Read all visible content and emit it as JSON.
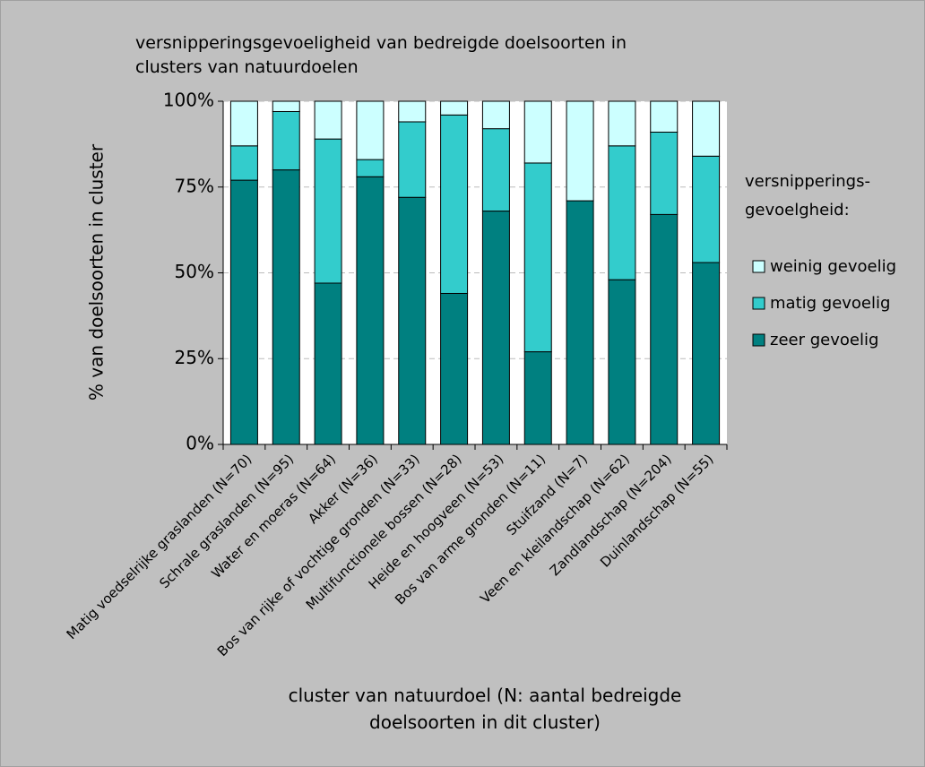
{
  "chart_data": {
    "type": "stacked_bar",
    "title": "versnipperingsgevoeligheid van bedreigde doelsoorten in clusters van natuurdoelen",
    "y_label": "% van doelsoorten in cluster",
    "x_label": "cluster van natuurdoel (N: aantal bedreigde doelsoorten in dit cluster)",
    "legend_title": "versnipperings-gevoelgheid:",
    "categories": [
      "Matig voedselrijke graslanden (N=70)",
      "Schrale graslanden (N=95)",
      "Water en moeras (N=64)",
      "Akker (N=36)",
      "Bos van rijke of vochtige gronden (N=33)",
      "Multifunctionele bossen (N=28)",
      "Heide en hoogveen (N=53)",
      "Bos van arme gronden (N=11)",
      "Stuifzand (N=7)",
      "Veen en kleilandschap (N=62)",
      "Zandlandschap (N=204)",
      "Duinlandschap (N=55)"
    ],
    "series": [
      {
        "name": "zeer gevoelig",
        "color": "#008080",
        "values": [
          77,
          80,
          47,
          78,
          72,
          44,
          68,
          27,
          71,
          48,
          67,
          53
        ]
      },
      {
        "name": "matig gevoelig",
        "color": "#33cccc",
        "values": [
          10,
          17,
          42,
          5,
          22,
          52,
          24,
          55,
          0,
          39,
          24,
          31
        ]
      },
      {
        "name": "weinig gevoelig",
        "color": "#ccffff",
        "values": [
          13,
          3,
          11,
          17,
          6,
          4,
          8,
          18,
          29,
          13,
          9,
          16
        ]
      }
    ],
    "ylim": [
      0,
      100
    ],
    "yticks": [
      {
        "value": 0,
        "label": "0%"
      },
      {
        "value": 25,
        "label": "25%"
      },
      {
        "value": 50,
        "label": "50%"
      },
      {
        "value": 75,
        "label": "75%"
      },
      {
        "value": 100,
        "label": "100%"
      }
    ],
    "grid": true,
    "legend": "right"
  }
}
